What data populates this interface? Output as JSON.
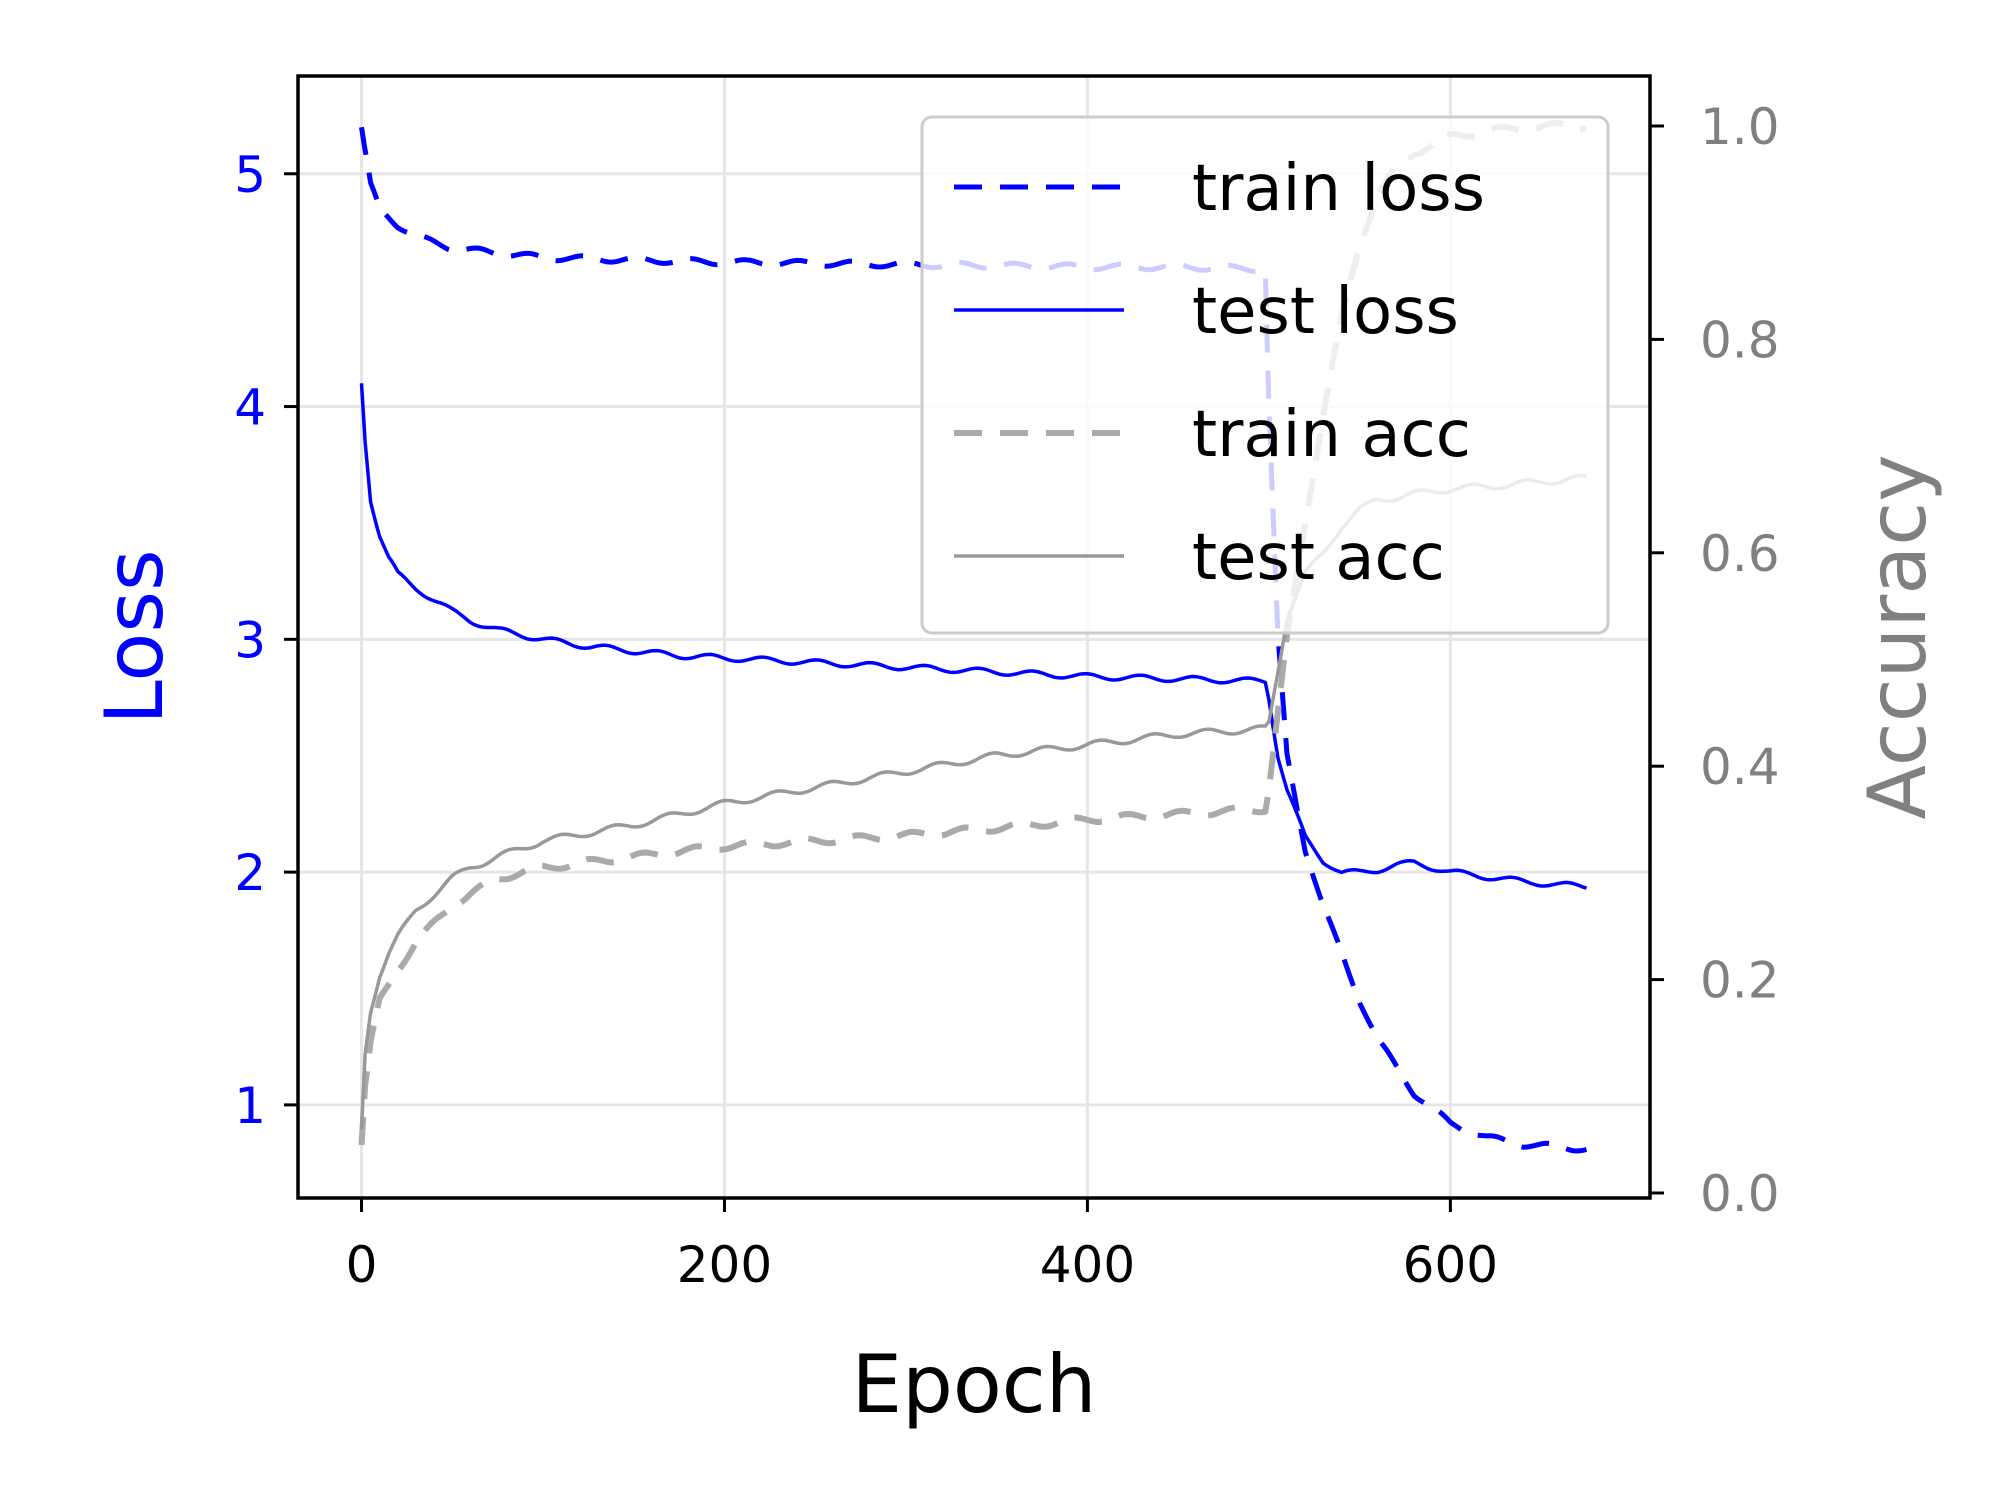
{
  "chart_data": {
    "type": "line",
    "xlabel": "Epoch",
    "ylabel_left": "Loss",
    "ylabel_right": "Accuracy",
    "xlim": [
      -35,
      710
    ],
    "ylim_left": [
      0.6,
      5.42
    ],
    "ylim_right": [
      0.0,
      1.0
    ],
    "xticks": [
      "0",
      "200",
      "400",
      "600"
    ],
    "yticks_left": [
      "1",
      "2",
      "3",
      "4",
      "5"
    ],
    "yticks_right": [
      "0.0",
      "0.2",
      "0.4",
      "0.6",
      "0.8",
      "1.0"
    ],
    "grid": true,
    "legend_position": "top-right",
    "colors": {
      "loss_axis": "#0000ff",
      "acc_axis": "#808080",
      "train_acc": "#aaaaaa",
      "test_acc": "#999999",
      "grid": "#e6e6e6"
    },
    "series": [
      {
        "name": "train loss",
        "axis": "left",
        "style": "dashed",
        "x": [
          0,
          5,
          10,
          20,
          30,
          50,
          75,
          100,
          150,
          200,
          250,
          300,
          350,
          400,
          450,
          498,
          500,
          505,
          510,
          520,
          530,
          540,
          550,
          560,
          580,
          600,
          620,
          640,
          660,
          675
        ],
        "y": [
          5.2,
          4.95,
          4.85,
          4.78,
          4.73,
          4.68,
          4.66,
          4.64,
          4.63,
          4.62,
          4.615,
          4.61,
          4.605,
          4.6,
          4.6,
          4.59,
          4.0,
          3.0,
          2.5,
          2.1,
          1.85,
          1.65,
          1.45,
          1.28,
          1.05,
          0.92,
          0.86,
          0.83,
          0.82,
          0.81
        ]
      },
      {
        "name": "test loss",
        "axis": "left",
        "style": "solid",
        "x": [
          0,
          2,
          5,
          10,
          15,
          20,
          30,
          40,
          50,
          60,
          75,
          100,
          125,
          150,
          175,
          200,
          250,
          300,
          350,
          400,
          450,
          498,
          500,
          505,
          510,
          520,
          530,
          540,
          550,
          560,
          570,
          580,
          590,
          600,
          620,
          640,
          660,
          675
        ],
        "y": [
          4.1,
          3.85,
          3.6,
          3.45,
          3.35,
          3.28,
          3.22,
          3.17,
          3.12,
          3.08,
          3.04,
          3.0,
          2.97,
          2.95,
          2.93,
          2.92,
          2.9,
          2.88,
          2.86,
          2.84,
          2.83,
          2.82,
          2.75,
          2.5,
          2.35,
          2.15,
          2.05,
          1.995,
          2.0,
          2.01,
          2.03,
          2.04,
          2.02,
          2.0,
          1.98,
          1.96,
          1.945,
          1.94
        ]
      },
      {
        "name": "train acc",
        "axis": "right",
        "style": "dashed",
        "x": [
          0,
          2,
          5,
          10,
          20,
          30,
          50,
          75,
          100,
          150,
          200,
          250,
          300,
          350,
          400,
          450,
          498,
          500,
          505,
          510,
          520,
          530,
          540,
          550,
          560,
          570,
          580,
          600,
          620,
          640,
          660,
          675
        ],
        "y": [
          0.045,
          0.1,
          0.14,
          0.18,
          0.21,
          0.235,
          0.27,
          0.295,
          0.305,
          0.315,
          0.325,
          0.33,
          0.335,
          0.342,
          0.35,
          0.355,
          0.36,
          0.38,
          0.45,
          0.52,
          0.63,
          0.73,
          0.82,
          0.89,
          0.935,
          0.96,
          0.975,
          0.99,
          0.995,
          0.998,
          1.0,
          1.0
        ]
      },
      {
        "name": "test acc",
        "axis": "right",
        "style": "solid",
        "x": [
          0,
          2,
          5,
          10,
          15,
          20,
          30,
          40,
          50,
          60,
          75,
          100,
          150,
          200,
          250,
          300,
          350,
          400,
          450,
          498,
          500,
          505,
          510,
          520,
          530,
          540,
          550,
          560,
          570,
          580,
          600,
          620,
          640,
          660,
          675
        ],
        "y": [
          0.06,
          0.13,
          0.17,
          0.205,
          0.225,
          0.24,
          0.265,
          0.28,
          0.295,
          0.305,
          0.315,
          0.33,
          0.345,
          0.365,
          0.38,
          0.395,
          0.41,
          0.42,
          0.43,
          0.435,
          0.44,
          0.49,
          0.54,
          0.58,
          0.6,
          0.625,
          0.64,
          0.65,
          0.652,
          0.655,
          0.66,
          0.662,
          0.665,
          0.668,
          0.67
        ]
      }
    ]
  }
}
